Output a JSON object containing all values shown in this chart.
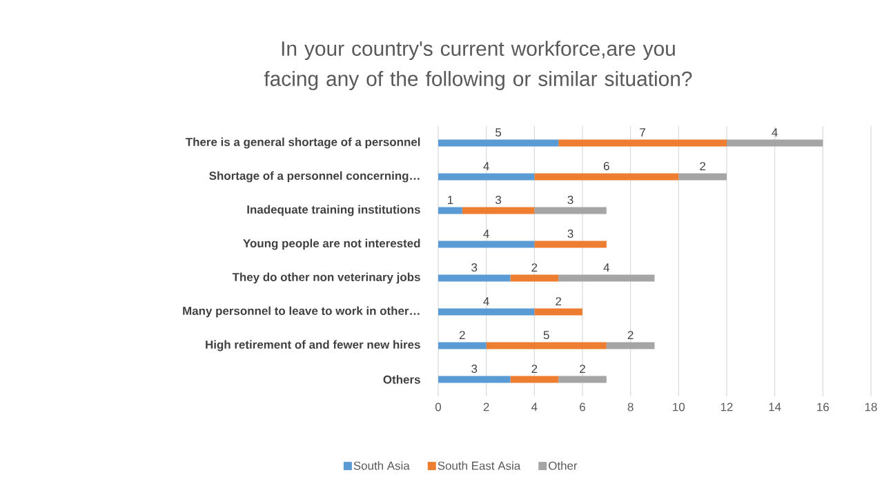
{
  "chart_data": {
    "type": "bar",
    "orientation": "horizontal",
    "stacked": true,
    "title": "In your country's current workforce,are you facing any of the following or similar situation?",
    "categories": [
      "There is a general shortage of a personnel",
      "Shortage of a personnel concerning…",
      "Inadequate training institutions",
      "Young people are not interested",
      "They do other non veterinary jobs",
      "Many personnel to leave to work in other…",
      "High retirement of and fewer new hires",
      "Others"
    ],
    "series": [
      {
        "name": "South Asia",
        "color": "#5b9bd5",
        "values": [
          5,
          4,
          1,
          4,
          3,
          4,
          2,
          3
        ]
      },
      {
        "name": "South East Asia",
        "color": "#ed7d31",
        "values": [
          7,
          6,
          3,
          3,
          2,
          2,
          5,
          2
        ]
      },
      {
        "name": "Other",
        "color": "#a5a5a5",
        "values": [
          4,
          2,
          3,
          null,
          4,
          null,
          2,
          2
        ]
      }
    ],
    "xlim": [
      0,
      18
    ],
    "xticks": [
      0,
      2,
      4,
      6,
      8,
      10,
      12,
      14,
      16,
      18
    ],
    "grid": "x",
    "legend": "bottom",
    "data_labels": true
  }
}
